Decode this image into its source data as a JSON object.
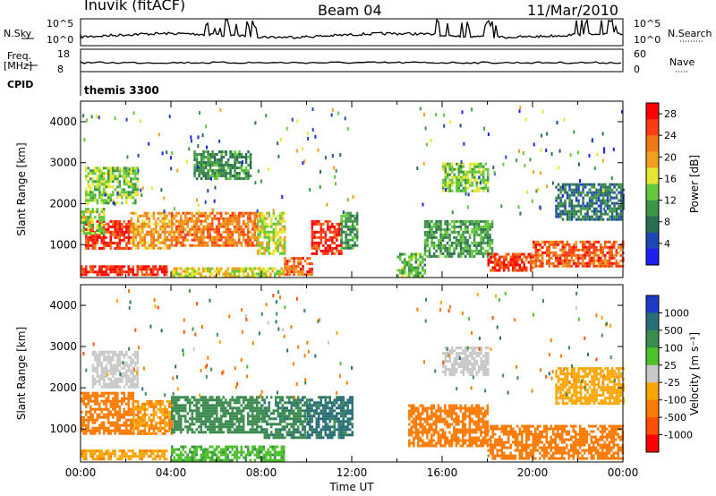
{
  "header": {
    "station": "Inuvik (fitACF)",
    "beam": "Beam 04",
    "date": "11/Mar/2010"
  },
  "top_panels": {
    "nsky_label": "N.Sky",
    "nsky_ticks": [
      "10^5",
      "10^0"
    ],
    "nsearch_label": "N.Search",
    "nsearch_ticks": [
      "10^5",
      "10^0"
    ],
    "freq_label": "Freq.",
    "freq_unit": "[MHz]",
    "freq_ticks": [
      "18",
      "8"
    ],
    "nave_label": "Nave",
    "nave_ticks": [
      "60",
      "0"
    ],
    "cpid_label": "CPID",
    "cpid_value": "themis 3300"
  },
  "colors": {
    "power_scale": [
      "#1e1ef0",
      "#1e46b4",
      "#2a6e50",
      "#3c9646",
      "#64c83c",
      "#e6e632",
      "#f0a01e",
      "#f07814",
      "#ff3c14",
      "#ff0000"
    ],
    "velocity_scale": [
      "#ff0000",
      "#ff4e00",
      "#ff7a00",
      "#ffa500",
      "#c8c8c8",
      "#4cc12c",
      "#3c8c50",
      "#2a6e78",
      "#1e3cc8"
    ]
  },
  "chart_data": [
    {
      "type": "heatmap",
      "title": "Power",
      "ylabel": "Slant Range [km]",
      "xlabel": "Time UT",
      "x_ticks": [
        "00:00",
        "04:00",
        "08:00",
        "12:00",
        "16:00",
        "20:00",
        "00:00"
      ],
      "y_ticks": [
        "1000",
        "2000",
        "3000",
        "4000"
      ],
      "ylim": [
        200,
        4500
      ],
      "xlim_hours": [
        0,
        24
      ],
      "colorbar_label": "Power [dB]",
      "colorbar_ticks": [
        "4",
        "8",
        "12",
        "16",
        "20",
        "24",
        "28"
      ],
      "colorbar_range": [
        0,
        30
      ],
      "regions": [
        {
          "t": [
            0.0,
            3.8
          ],
          "r": [
            250,
            500
          ],
          "v": 27
        },
        {
          "t": [
            0.2,
            2.2
          ],
          "r": [
            900,
            1600
          ],
          "v": 26
        },
        {
          "t": [
            0.0,
            1.0
          ],
          "r": [
            1300,
            1900
          ],
          "v": 15
        },
        {
          "t": [
            2.2,
            4.0
          ],
          "r": [
            900,
            1800
          ],
          "v": 20
        },
        {
          "t": [
            4.0,
            7.8
          ],
          "r": [
            1000,
            1800
          ],
          "v": 22
        },
        {
          "t": [
            7.8,
            9.0
          ],
          "r": [
            800,
            1800
          ],
          "v": 16
        },
        {
          "t": [
            9.0,
            10.2
          ],
          "r": [
            300,
            700
          ],
          "v": 24
        },
        {
          "t": [
            10.2,
            11.5
          ],
          "r": [
            800,
            1600
          ],
          "v": 27
        },
        {
          "t": [
            11.5,
            12.2
          ],
          "r": [
            900,
            1800
          ],
          "v": 10
        },
        {
          "t": [
            4.0,
            9.0
          ],
          "r": [
            250,
            450
          ],
          "v": 17
        },
        {
          "t": [
            0.2,
            2.5
          ],
          "r": [
            2000,
            2900
          ],
          "v": 14
        },
        {
          "t": [
            5.0,
            7.5
          ],
          "r": [
            2600,
            3300
          ],
          "v": 10
        },
        {
          "t": [
            14.0,
            15.2
          ],
          "r": [
            250,
            800
          ],
          "v": 12
        },
        {
          "t": [
            15.2,
            18.2
          ],
          "r": [
            700,
            1600
          ],
          "v": 11
        },
        {
          "t": [
            16.0,
            18.0
          ],
          "r": [
            2300,
            3000
          ],
          "v": 14
        },
        {
          "t": [
            18.0,
            20.0
          ],
          "r": [
            400,
            800
          ],
          "v": 26
        },
        {
          "t": [
            20.0,
            24.0
          ],
          "r": [
            500,
            1100
          ],
          "v": 24
        },
        {
          "t": [
            21.0,
            24.0
          ],
          "r": [
            1600,
            2500
          ],
          "v": 8
        }
      ]
    },
    {
      "type": "heatmap",
      "title": "Velocity",
      "ylabel": "Slant Range [km]",
      "xlabel": "Time UT",
      "x_ticks": [
        "00:00",
        "04:00",
        "08:00",
        "12:00",
        "16:00",
        "20:00",
        "00:00"
      ],
      "y_ticks": [
        "1000",
        "2000",
        "3000",
        "4000"
      ],
      "ylim": [
        200,
        4500
      ],
      "xlim_hours": [
        0,
        24
      ],
      "colorbar_label": "Velocity [m s^-1]",
      "colorbar_ticks": [
        "1000",
        "500",
        "100",
        "25",
        "-25",
        "-100",
        "-500",
        "-1000"
      ],
      "regions": [
        {
          "t": [
            0.0,
            3.8
          ],
          "r": [
            250,
            500
          ],
          "v": -80
        },
        {
          "t": [
            0.0,
            2.3
          ],
          "r": [
            900,
            1900
          ],
          "v": -200
        },
        {
          "t": [
            2.3,
            4.0
          ],
          "r": [
            900,
            1700
          ],
          "v": -100
        },
        {
          "t": [
            4.0,
            8.0
          ],
          "r": [
            900,
            1800
          ],
          "v": 200
        },
        {
          "t": [
            8.0,
            10.0
          ],
          "r": [
            800,
            1800
          ],
          "v": 400
        },
        {
          "t": [
            10.0,
            12.0
          ],
          "r": [
            800,
            1800
          ],
          "v": 700
        },
        {
          "t": [
            4.0,
            9.0
          ],
          "r": [
            250,
            600
          ],
          "v": 80
        },
        {
          "t": [
            0.5,
            2.5
          ],
          "r": [
            2000,
            2900
          ],
          "v": 0
        },
        {
          "t": [
            14.5,
            18.0
          ],
          "r": [
            600,
            1600
          ],
          "v": -300
        },
        {
          "t": [
            16.0,
            18.0
          ],
          "r": [
            2300,
            3000
          ],
          "v": 0
        },
        {
          "t": [
            18.0,
            24.0
          ],
          "r": [
            300,
            1100
          ],
          "v": -250
        },
        {
          "t": [
            21.0,
            24.0
          ],
          "r": [
            1600,
            2500
          ],
          "v": -50
        }
      ]
    }
  ]
}
